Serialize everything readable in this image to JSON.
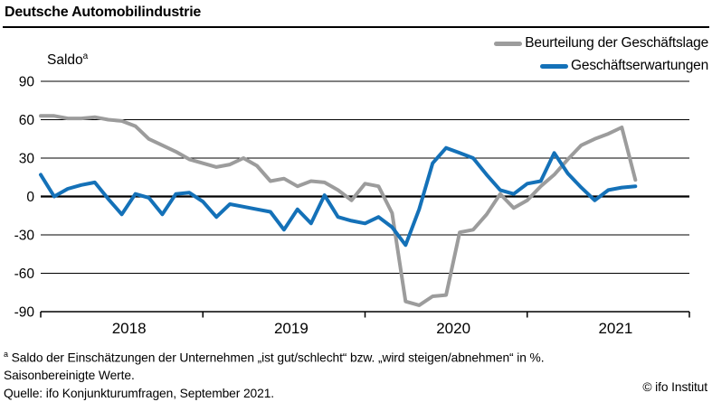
{
  "title": "Deutsche Automobilindustrie",
  "copyright": "© ifo Institut",
  "footnote_marker": "a",
  "footnotes": [
    "Saldo der Einschätzungen der Unternehmen „ist gut/schlecht“ bzw. „wird steigen/abnehmen“ in %.",
    "Saisonbereinigte Werte.",
    "Quelle: ifo Konjunkturumfragen, September 2021."
  ],
  "chart_data": {
    "type": "line",
    "ylabel": "Saldo",
    "ylabel_superscript": "a",
    "ylim": [
      -90,
      90
    ],
    "yticks": [
      90,
      60,
      30,
      0,
      -30,
      -60,
      -90
    ],
    "grid": "horizontal",
    "legend_position": "top-right",
    "frequency": "monthly",
    "x_start": "2018-01",
    "x_end": "2021-09",
    "x_axis_end": "2022-01",
    "xtick_year_labels": [
      "2018",
      "2019",
      "2020",
      "2021"
    ],
    "axis_color": "#000000",
    "series": [
      {
        "name": "Beurteilung der Geschäftslage",
        "color": "#9c9c9c",
        "values": [
          63,
          63,
          61,
          61,
          62,
          60,
          59,
          55,
          45,
          40,
          35,
          29,
          26,
          23,
          25,
          30,
          24,
          12,
          14,
          8,
          12,
          11,
          5,
          -3,
          10,
          8,
          -13,
          -82,
          -85,
          -78,
          -77,
          -28,
          -26,
          -14,
          2,
          -9,
          -3,
          8,
          17,
          29,
          40,
          45,
          49,
          54,
          13
        ]
      },
      {
        "name": "Geschäftserwartungen",
        "color": "#1471b8",
        "values": [
          17,
          0,
          6,
          9,
          11,
          -2,
          -14,
          2,
          -1,
          -14,
          2,
          3,
          -4,
          -16,
          -6,
          -8,
          -10,
          -12,
          -26,
          -10,
          -21,
          1,
          -16,
          -19,
          -21,
          -16,
          -24,
          -38,
          -10,
          26,
          38,
          34,
          30,
          17,
          5,
          2,
          10,
          12,
          34,
          18,
          7,
          -3,
          5,
          7,
          8
        ]
      }
    ]
  }
}
